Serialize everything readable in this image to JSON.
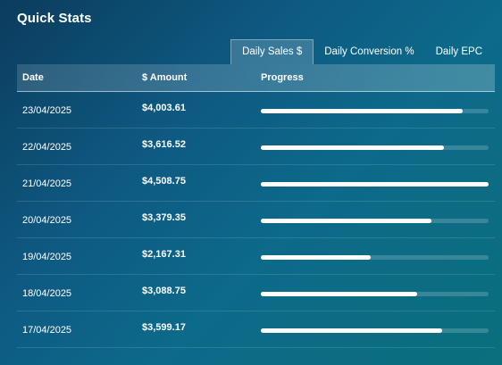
{
  "title": "Quick Stats",
  "tabs": [
    {
      "label": "Daily Sales $",
      "active": true
    },
    {
      "label": "Daily Conversion %",
      "active": false
    },
    {
      "label": "Daily EPC",
      "active": false
    }
  ],
  "columns": {
    "date": "Date",
    "amount": "$ Amount",
    "progress": "Progress"
  },
  "rows": [
    {
      "date": "23/04/2025",
      "amount": "$4,003.61",
      "progress": 0.888
    },
    {
      "date": "22/04/2025",
      "amount": "$3,616.52",
      "progress": 0.802
    },
    {
      "date": "21/04/2025",
      "amount": "$4,508.75",
      "progress": 1.0
    },
    {
      "date": "20/04/2025",
      "amount": "$3,379.35",
      "progress": 0.75
    },
    {
      "date": "19/04/2025",
      "amount": "$2,167.31",
      "progress": 0.481
    },
    {
      "date": "18/04/2025",
      "amount": "$3,088.75",
      "progress": 0.685
    },
    {
      "date": "17/04/2025",
      "amount": "$3,599.17",
      "progress": 0.798
    }
  ]
}
